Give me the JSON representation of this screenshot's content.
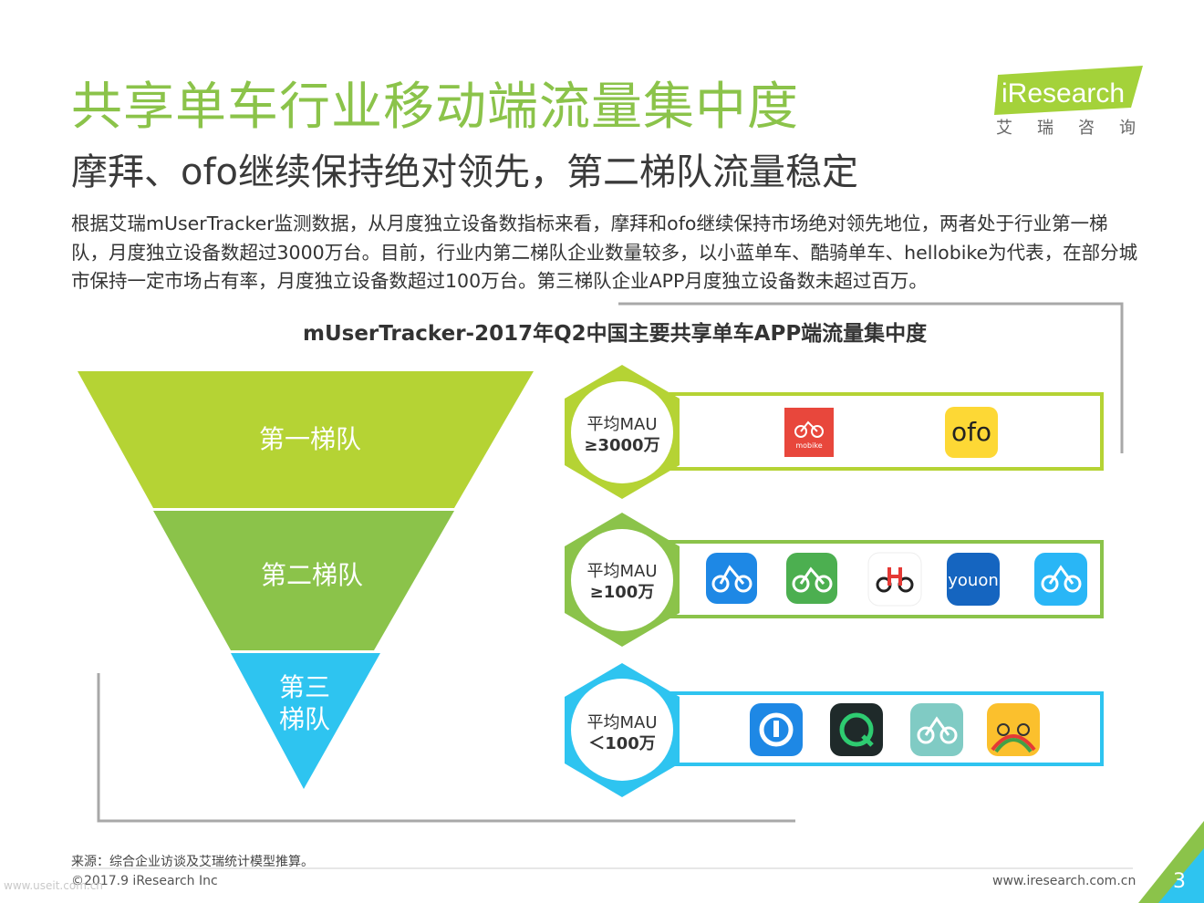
{
  "header": {
    "title": "共享单车行业移动端流量集中度",
    "subtitle": "摩拜、ofo继续保持绝对领先，第二梯队流量稳定",
    "body": "根据艾瑞mUserTracker监测数据，从月度独立设备数指标来看，摩拜和ofo继续保持市场绝对领先地位，两者处于行业第一梯队，月度独立设备数超过3000万台。目前，行业内第二梯队企业数量较多，以小蓝单车、酷骑单车、hellobike为代表，在部分城市保持一定市场占有率，月度独立设备数超过100万台。第三梯队企业APP月度独立设备数未超过百万。"
  },
  "logo": {
    "brand": "iResearch",
    "chinese": "艾瑞咨询"
  },
  "chart": {
    "title": "mUserTracker-2017年Q2中国主要共享单车APP端流量集中度",
    "tiers": [
      {
        "label": "第一梯队",
        "mau_line1": "平均MAU",
        "mau_line2": "≥3000万",
        "color": "#b5d334",
        "apps": [
          "mobike-icon",
          "ofo-icon"
        ]
      },
      {
        "label": "第二梯队",
        "mau_line1": "平均MAU",
        "mau_line2": "≥100万",
        "color": "#8bc34a",
        "apps": [
          "bluegogo-icon",
          "coolqi-icon",
          "hellobike-icon",
          "youon-icon",
          "bike-blue-icon"
        ]
      },
      {
        "label_line1": "第三",
        "label_line2": "梯队",
        "mau_line1": "平均MAU",
        "mau_line2": "＜100万",
        "color": "#2ec4f0",
        "apps": [
          "loop-icon",
          "q-icon",
          "teal-bike-icon",
          "rainbow-bike-icon"
        ]
      }
    ],
    "app_labels": {
      "ofo": "ofo",
      "youon": "youon",
      "mobike": "mobike"
    }
  },
  "footer": {
    "source": "来源：综合企业访谈及艾瑞统计模型推算。",
    "copyright": "©2017.9 iResearch Inc",
    "url": "www.iresearch.com.cn",
    "page": "3",
    "watermark": "www.useit.com.cn"
  }
}
